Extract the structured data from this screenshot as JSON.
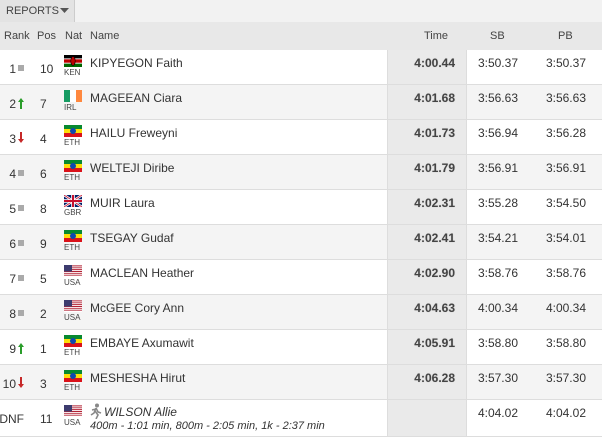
{
  "toolbar": {
    "label": "REPORTS"
  },
  "table": {
    "columns": [
      "Rank",
      "Pos",
      "Nat",
      "Name",
      "Time",
      "SB",
      "PB"
    ],
    "rows": [
      {
        "rank": "1",
        "movement": "same",
        "pos": "10",
        "nat": "KEN",
        "name": "KIPYEGON Faith",
        "time": "4:00.44",
        "sb": "3:50.37",
        "pb": "3:50.37"
      },
      {
        "rank": "2",
        "movement": "up",
        "pos": "7",
        "nat": "IRL",
        "name": "MAGEEAN Ciara",
        "time": "4:01.68",
        "sb": "3:56.63",
        "pb": "3:56.63"
      },
      {
        "rank": "3",
        "movement": "down",
        "pos": "4",
        "nat": "ETH",
        "name": "HAILU Freweyni",
        "time": "4:01.73",
        "sb": "3:56.94",
        "pb": "3:56.28"
      },
      {
        "rank": "4",
        "movement": "same",
        "pos": "6",
        "nat": "ETH",
        "name": "WELTEJI Diribe",
        "time": "4:01.79",
        "sb": "3:56.91",
        "pb": "3:56.91"
      },
      {
        "rank": "5",
        "movement": "same",
        "pos": "8",
        "nat": "GBR",
        "name": "MUIR Laura",
        "time": "4:02.31",
        "sb": "3:55.28",
        "pb": "3:54.50"
      },
      {
        "rank": "6",
        "movement": "same",
        "pos": "9",
        "nat": "ETH",
        "name": "TSEGAY Gudaf",
        "time": "4:02.41",
        "sb": "3:54.21",
        "pb": "3:54.01"
      },
      {
        "rank": "7",
        "movement": "same",
        "pos": "5",
        "nat": "USA",
        "name": "MACLEAN Heather",
        "time": "4:02.90",
        "sb": "3:58.76",
        "pb": "3:58.76"
      },
      {
        "rank": "8",
        "movement": "same",
        "pos": "2",
        "nat": "USA",
        "name": "McGEE Cory Ann",
        "time": "4:04.63",
        "sb": "4:00.34",
        "pb": "4:00.34"
      },
      {
        "rank": "9",
        "movement": "up",
        "pos": "1",
        "nat": "ETH",
        "name": "EMBAYE Axumawit",
        "time": "4:05.91",
        "sb": "3:58.80",
        "pb": "3:58.80"
      },
      {
        "rank": "10",
        "movement": "down",
        "pos": "3",
        "nat": "ETH",
        "name": "MESHESHA Hirut",
        "time": "4:06.28",
        "sb": "3:57.30",
        "pb": "3:57.30"
      },
      {
        "rank": "DNF",
        "movement": "none",
        "pos": "11",
        "nat": "USA",
        "name": "WILSON Allie",
        "time": null,
        "sb": "4:04.02",
        "pb": "4:04.02",
        "note": "400m - 1:01 min, 800m - 2:05 min, 1k - 2:37 min",
        "runner_icon": true
      }
    ]
  }
}
